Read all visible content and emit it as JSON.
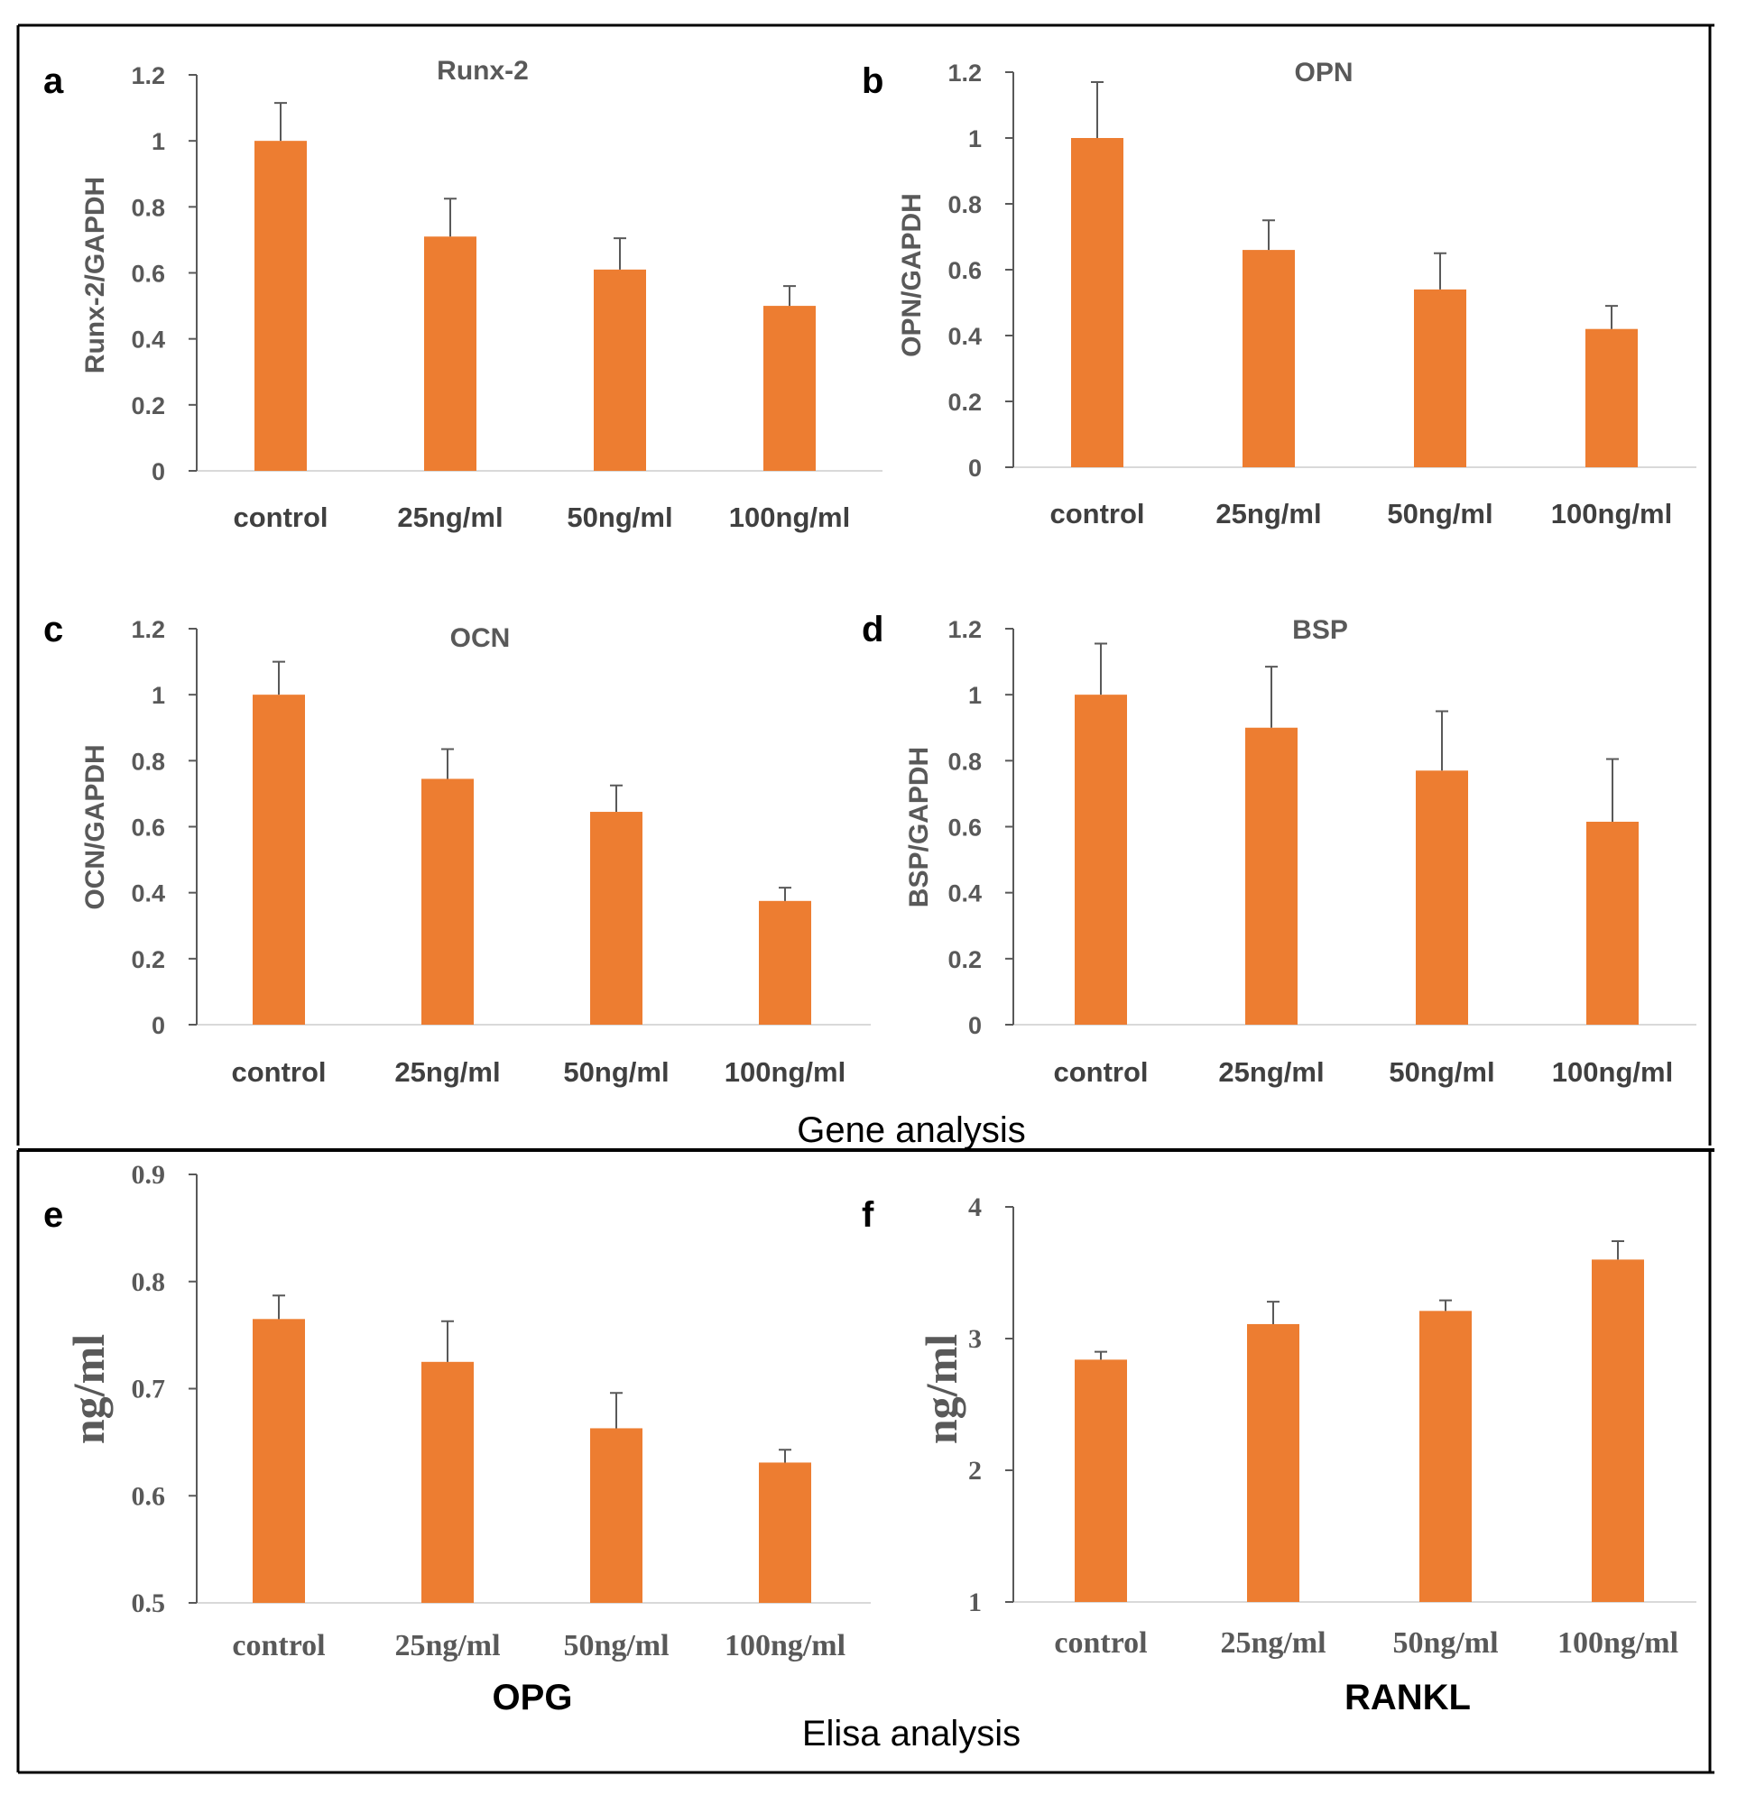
{
  "figure": {
    "section_labels": {
      "gene": "Gene analysis",
      "elisa": "Elisa analysis"
    },
    "colors": {
      "bar": "#ed7d31",
      "axis": "#595959",
      "text": "#404040"
    }
  },
  "chart_data": [
    {
      "id": "a",
      "letter": "a",
      "type": "bar",
      "title": "Runx-2",
      "ylabel": "Runx-2/GAPDH",
      "xlabel": "",
      "categories": [
        "control",
        "25ng/ml",
        "50ng/ml",
        "100ng/ml"
      ],
      "values": [
        1.0,
        0.71,
        0.61,
        0.5
      ],
      "errors": [
        0.115,
        0.115,
        0.095,
        0.06
      ],
      "ylim": [
        0,
        1.2
      ],
      "yticks": [
        0,
        0.2,
        0.4,
        0.6,
        0.8,
        1,
        1.2
      ],
      "ytick_labels": [
        "0",
        "0.2",
        "0.4",
        "0.6",
        "0.8",
        "1",
        "1.2"
      ]
    },
    {
      "id": "b",
      "letter": "b",
      "type": "bar",
      "title": "OPN",
      "ylabel": "OPN/GAPDH",
      "xlabel": "",
      "categories": [
        "control",
        "25ng/ml",
        "50ng/ml",
        "100ng/ml"
      ],
      "values": [
        1.0,
        0.66,
        0.54,
        0.42
      ],
      "errors": [
        0.17,
        0.09,
        0.11,
        0.07
      ],
      "ylim": [
        0,
        1.2
      ],
      "yticks": [
        0,
        0.2,
        0.4,
        0.6,
        0.8,
        1,
        1.2
      ],
      "ytick_labels": [
        "0",
        "0.2",
        "0.4",
        "0.6",
        "0.8",
        "1",
        "1.2"
      ]
    },
    {
      "id": "c",
      "letter": "c",
      "type": "bar",
      "title": "OCN",
      "ylabel": "OCN/GAPDH",
      "xlabel": "",
      "categories": [
        "control",
        "25ng/ml",
        "50ng/ml",
        "100ng/ml"
      ],
      "values": [
        1.0,
        0.745,
        0.645,
        0.375
      ],
      "errors": [
        0.1,
        0.09,
        0.08,
        0.04
      ],
      "ylim": [
        0,
        1.2
      ],
      "yticks": [
        0,
        0.2,
        0.4,
        0.6,
        0.8,
        1,
        1.2
      ],
      "ytick_labels": [
        "0",
        "0.2",
        "0.4",
        "0.6",
        "0.8",
        "1",
        "1.2"
      ]
    },
    {
      "id": "d",
      "letter": "d",
      "type": "bar",
      "title": "BSP",
      "ylabel": "BSP/GAPDH",
      "xlabel": "",
      "categories": [
        "control",
        "25ng/ml",
        "50ng/ml",
        "100ng/ml"
      ],
      "values": [
        1.0,
        0.9,
        0.77,
        0.615
      ],
      "errors": [
        0.155,
        0.185,
        0.18,
        0.19
      ],
      "ylim": [
        0,
        1.2
      ],
      "yticks": [
        0,
        0.2,
        0.4,
        0.6,
        0.8,
        1,
        1.2
      ],
      "ytick_labels": [
        "0",
        "0.2",
        "0.4",
        "0.6",
        "0.8",
        "1",
        "1.2"
      ]
    },
    {
      "id": "e",
      "letter": "e",
      "type": "bar",
      "title": "OPG",
      "ylabel": "ng/ml",
      "xlabel": "",
      "categories": [
        "control",
        "25ng/ml",
        "50ng/ml",
        "100ng/ml"
      ],
      "values": [
        0.765,
        0.725,
        0.663,
        0.631
      ],
      "errors": [
        0.022,
        0.038,
        0.033,
        0.012
      ],
      "ylim": [
        0.5,
        0.9
      ],
      "yticks": [
        0.5,
        0.6,
        0.7,
        0.8,
        0.9
      ],
      "ytick_labels": [
        "0.5",
        "0.6",
        "0.7",
        "0.8",
        "0.9"
      ]
    },
    {
      "id": "f",
      "letter": "f",
      "type": "bar",
      "title": "RANKL",
      "ylabel": "ng/ml",
      "xlabel": "",
      "categories": [
        "control",
        "25ng/ml",
        "50ng/ml",
        "100ng/ml"
      ],
      "values": [
        2.84,
        3.11,
        3.21,
        3.6
      ],
      "errors": [
        0.06,
        0.17,
        0.08,
        0.14
      ],
      "ylim": [
        1,
        4
      ],
      "yticks": [
        1,
        2,
        3,
        4
      ],
      "ytick_labels": [
        "1",
        "2",
        "3",
        "4"
      ]
    }
  ]
}
